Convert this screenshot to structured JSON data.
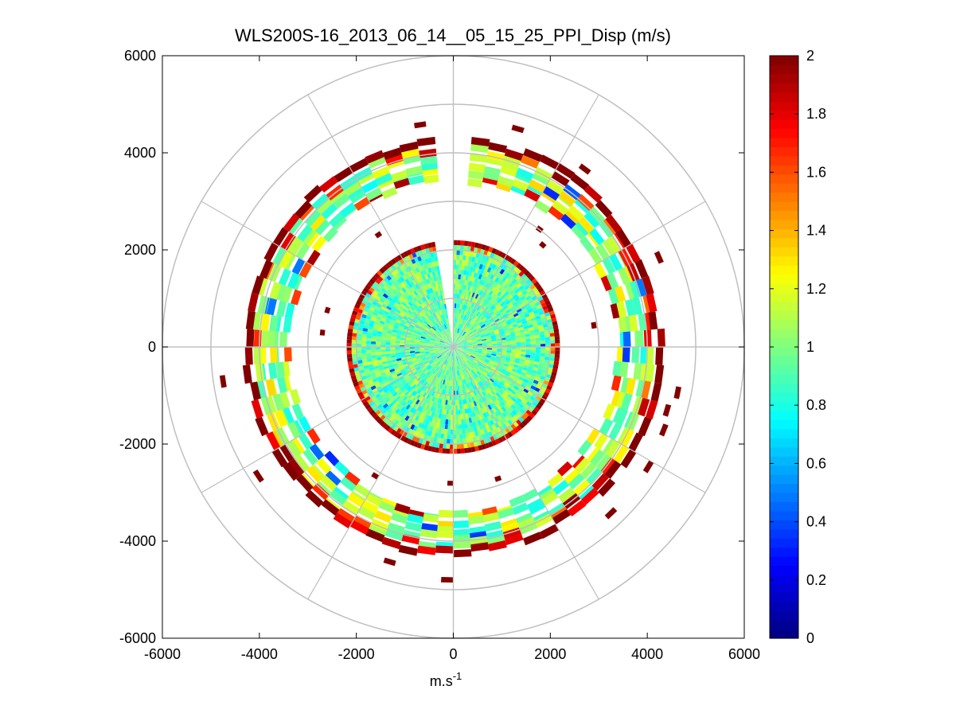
{
  "chart_data": {
    "type": "polar-ppi",
    "title": "WLS200S-16_2013_06_14__05_15_25_PPI_Disp (m/s)",
    "xlabel_base": "m.s",
    "xlabel_exp": "-1",
    "ylabel": "",
    "xlim": [
      -6000,
      6000
    ],
    "ylim": [
      -6000,
      6000
    ],
    "xticks": [
      -6000,
      -4000,
      -2000,
      0,
      2000,
      4000,
      6000
    ],
    "yticks": [
      -6000,
      -4000,
      -2000,
      0,
      2000,
      4000,
      6000
    ],
    "xtick_labels": [
      "-6000",
      "-4000",
      "-2000",
      "0",
      "2000",
      "4000",
      "6000"
    ],
    "ytick_labels": [
      "-6000",
      "-4000",
      "-2000",
      "0",
      "2000",
      "4000",
      "6000"
    ],
    "polar_grid_radii": [
      1000,
      2000,
      3000,
      4000,
      5000,
      6000
    ],
    "polar_grid_spokes_deg": [
      0,
      30,
      60,
      90,
      120,
      150,
      180,
      210,
      240,
      270,
      300,
      330
    ],
    "colorbar": {
      "min": 0,
      "max": 2,
      "ticks": [
        0,
        0.2,
        0.4,
        0.6,
        0.8,
        1,
        1.2,
        1.4,
        1.6,
        1.8,
        2
      ],
      "tick_labels": [
        "0",
        "0.2",
        "0.4",
        "0.6",
        "0.8",
        "1",
        "1.2",
        "1.4",
        "1.6",
        "1.8",
        "2"
      ],
      "colormap": "jet"
    },
    "rings": [
      {
        "name": "inner-disk",
        "r_min": 0,
        "r_max": 2200,
        "gap_deg": [
          350,
          360
        ],
        "mean_value": 0.95,
        "edge_value": 2.0
      },
      {
        "name": "outer-annulus",
        "r_min": 3400,
        "r_max": 4300,
        "gap_deg": [
          355,
          365
        ],
        "mean_value": 1.05,
        "edge_value": 2.0
      }
    ],
    "colors": {
      "grid": "#bfbfbf",
      "axes": "#000000",
      "background": "#ffffff"
    }
  }
}
